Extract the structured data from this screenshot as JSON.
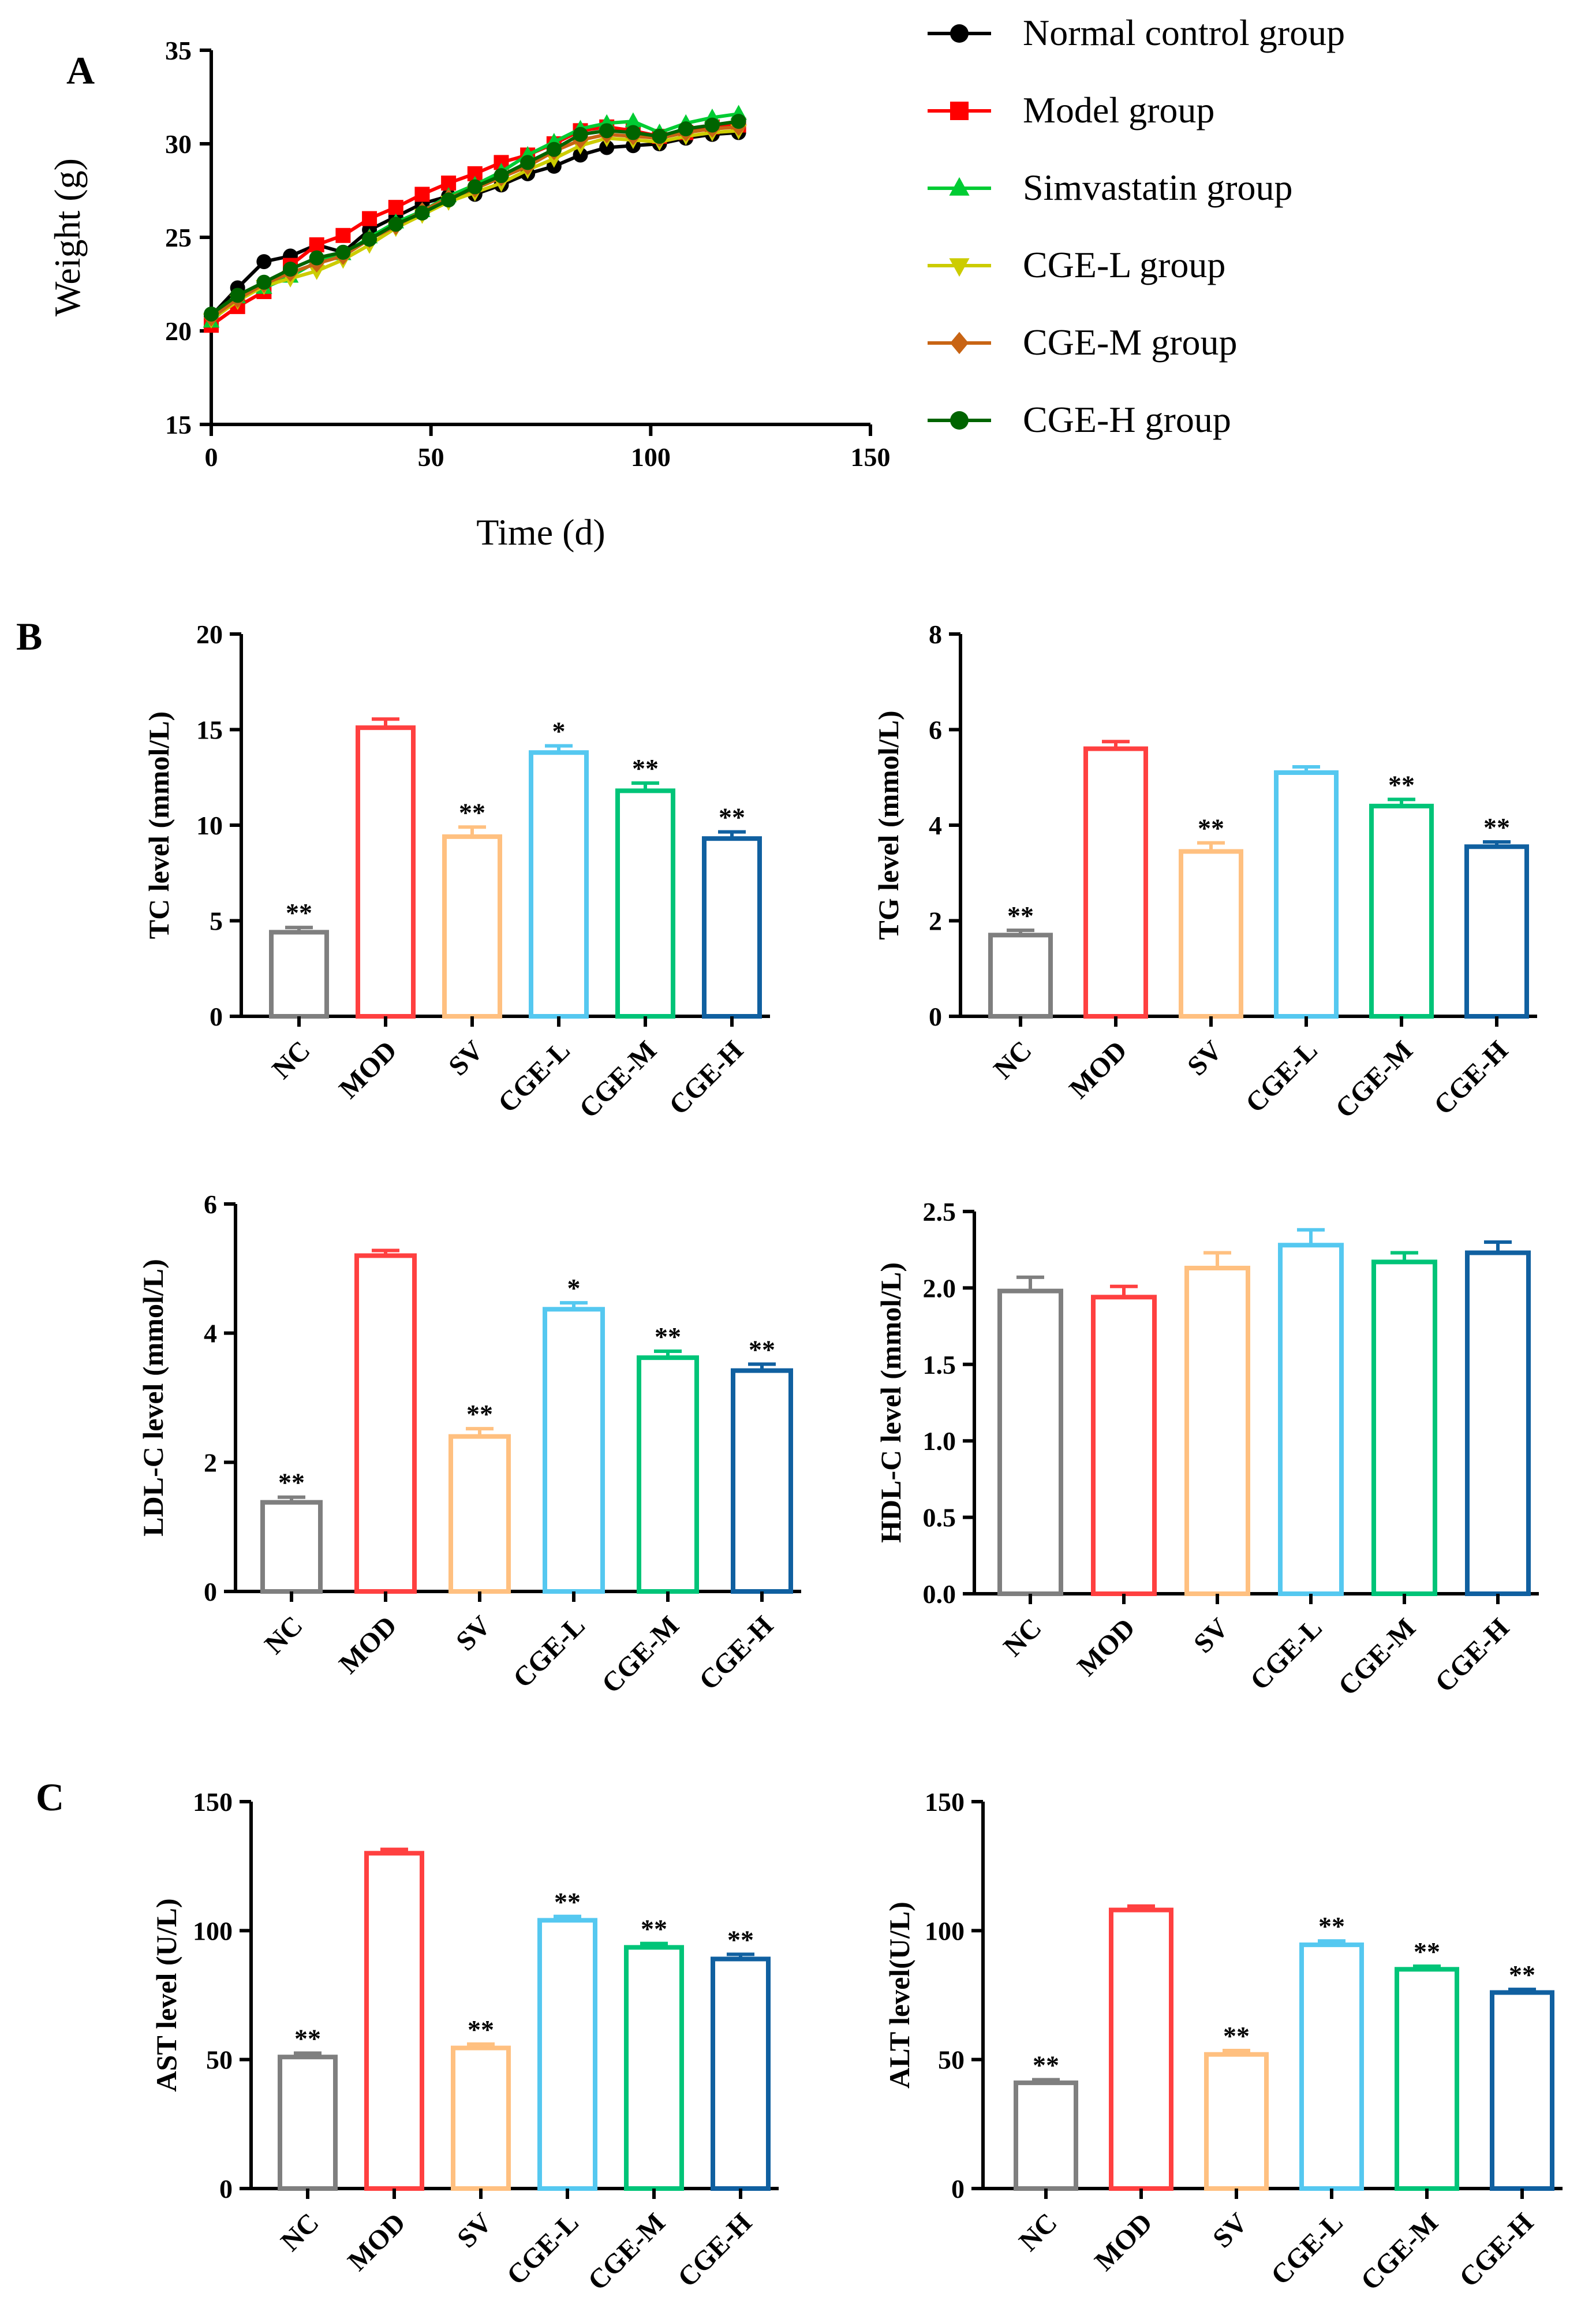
{
  "figure": {
    "panel_labels": [
      "A",
      "B",
      "C"
    ]
  },
  "chart_data": [
    {
      "id": "A",
      "type": "line",
      "panel": "A",
      "title": "",
      "xlabel": "Time (d)",
      "ylabel": "Weight (g)",
      "xlim": [
        0,
        150
      ],
      "ylim": [
        15,
        35
      ],
      "xticks": [
        0,
        50,
        100,
        150
      ],
      "yticks": [
        15,
        20,
        25,
        30,
        35
      ],
      "x": [
        0,
        6,
        12,
        18,
        24,
        30,
        36,
        42,
        48,
        54,
        60,
        66,
        72,
        78,
        84,
        90,
        96,
        102,
        108,
        114,
        120
      ],
      "series": [
        {
          "name": "Normal control group",
          "marker": "circle",
          "color": "#000000",
          "values": [
            20.8,
            22.3,
            23.7,
            24.0,
            24.6,
            24.2,
            25.4,
            26.1,
            26.8,
            27.2,
            27.3,
            27.8,
            28.4,
            28.8,
            29.4,
            29.8,
            29.9,
            30.0,
            30.3,
            30.5,
            30.6
          ]
        },
        {
          "name": "Model group",
          "marker": "square",
          "color": "#ff0000",
          "values": [
            20.3,
            21.3,
            22.1,
            23.5,
            24.6,
            25.1,
            26.0,
            26.6,
            27.3,
            27.9,
            28.4,
            29.0,
            29.4,
            30.0,
            30.7,
            30.9,
            30.7,
            30.4,
            30.6,
            30.9,
            31.0
          ]
        },
        {
          "name": "Simvastatin group",
          "marker": "triangle-up",
          "color": "#00cc33",
          "values": [
            20.5,
            21.8,
            22.3,
            22.9,
            23.7,
            24.1,
            25.0,
            25.8,
            26.4,
            27.2,
            27.8,
            28.5,
            29.4,
            30.1,
            30.8,
            31.1,
            31.2,
            30.6,
            31.1,
            31.4,
            31.6
          ]
        },
        {
          "name": "CGE-L group",
          "marker": "triangle-down",
          "color": "#cccc00",
          "values": [
            20.6,
            21.6,
            22.4,
            22.8,
            23.2,
            23.8,
            24.6,
            25.5,
            26.2,
            26.9,
            27.4,
            27.9,
            28.6,
            29.2,
            29.9,
            30.3,
            30.2,
            30.1,
            30.4,
            30.6,
            30.7
          ]
        },
        {
          "name": "CGE-M group",
          "marker": "diamond",
          "color": "#c86414",
          "values": [
            20.7,
            21.7,
            22.5,
            23.1,
            23.6,
            24.0,
            24.9,
            25.6,
            26.4,
            27.1,
            27.6,
            28.2,
            28.8,
            29.6,
            30.2,
            30.5,
            30.4,
            30.3,
            30.6,
            30.8,
            30.9
          ]
        },
        {
          "name": "CGE-H group",
          "marker": "circle",
          "color": "#006400",
          "values": [
            20.9,
            21.9,
            22.6,
            23.3,
            23.9,
            24.2,
            24.9,
            25.7,
            26.3,
            27.0,
            27.7,
            28.3,
            29.0,
            29.7,
            30.5,
            30.7,
            30.6,
            30.4,
            30.8,
            31.0,
            31.2
          ]
        }
      ]
    },
    {
      "id": "B1",
      "type": "bar",
      "panel": "B",
      "ylabel": "TC level (mmol/L)",
      "ylim": [
        0,
        20
      ],
      "yticks": [
        "0",
        "5",
        "10",
        "15",
        "20"
      ],
      "categories": [
        "NC",
        "MOD",
        "SV",
        "CGE-L",
        "CGE-M",
        "CGE-H"
      ],
      "values": [
        4.4,
        15.1,
        9.4,
        13.8,
        11.8,
        9.3
      ],
      "errors": [
        0.25,
        0.45,
        0.5,
        0.35,
        0.4,
        0.35
      ],
      "significance": [
        "**",
        "",
        "**",
        "*",
        "**",
        "**"
      ]
    },
    {
      "id": "B2",
      "type": "bar",
      "panel": "B",
      "ylabel": "TG level (mmol/L)",
      "ylim": [
        0,
        8
      ],
      "yticks": [
        "0",
        "2",
        "4",
        "6",
        "8"
      ],
      "categories": [
        "NC",
        "MOD",
        "SV",
        "CGE-L",
        "CGE-M",
        "CGE-H"
      ],
      "values": [
        1.7,
        5.6,
        3.45,
        5.1,
        4.4,
        3.55
      ],
      "errors": [
        0.1,
        0.15,
        0.18,
        0.12,
        0.14,
        0.1
      ],
      "significance": [
        "**",
        "",
        "**",
        "",
        "**",
        "**"
      ]
    },
    {
      "id": "B3",
      "type": "bar",
      "panel": "B",
      "ylabel": "LDL-C level (mmol/L)",
      "ylim": [
        0,
        6
      ],
      "yticks": [
        "0",
        "2",
        "4",
        "6"
      ],
      "categories": [
        "NC",
        "MOD",
        "SV",
        "CGE-L",
        "CGE-M",
        "CGE-H"
      ],
      "values": [
        1.38,
        5.2,
        2.4,
        4.37,
        3.62,
        3.42
      ],
      "errors": [
        0.08,
        0.08,
        0.12,
        0.1,
        0.1,
        0.1
      ],
      "significance": [
        "**",
        "",
        "**",
        "*",
        "**",
        "**"
      ]
    },
    {
      "id": "B4",
      "type": "bar",
      "panel": "B",
      "ylabel": "HDL-C level (mmol/L)",
      "ylim": [
        0,
        2.5
      ],
      "yticks": [
        "0.0",
        "0.5",
        "1.0",
        "1.5",
        "2.0",
        "2.5"
      ],
      "categories": [
        "NC",
        "MOD",
        "SV",
        "CGE-L",
        "CGE-M",
        "CGE-H"
      ],
      "values": [
        1.98,
        1.94,
        2.13,
        2.28,
        2.17,
        2.23
      ],
      "errors": [
        0.09,
        0.07,
        0.1,
        0.1,
        0.06,
        0.07
      ],
      "significance": [
        "",
        "",
        "",
        "",
        "",
        ""
      ]
    },
    {
      "id": "C1",
      "type": "bar",
      "panel": "C",
      "ylabel": "AST level (U/L)",
      "ylim": [
        0,
        150
      ],
      "yticks": [
        "0",
        "50",
        "100",
        "150"
      ],
      "categories": [
        "NC",
        "MOD",
        "SV",
        "CGE-L",
        "CGE-M",
        "CGE-H"
      ],
      "values": [
        51,
        130,
        54.5,
        104,
        93.5,
        89
      ],
      "errors": [
        1.5,
        1.5,
        1.5,
        1.5,
        1.5,
        1.8
      ],
      "significance": [
        "**",
        "",
        "**",
        "**",
        "**",
        "**"
      ]
    },
    {
      "id": "C2",
      "type": "bar",
      "panel": "C",
      "ylabel": "ALT level(U/L)",
      "ylim": [
        0,
        150
      ],
      "yticks": [
        "0",
        "50",
        "100",
        "150"
      ],
      "categories": [
        "NC",
        "MOD",
        "SV",
        "CGE-L",
        "CGE-M",
        "CGE-H"
      ],
      "values": [
        41,
        108,
        52,
        94.5,
        85,
        76
      ],
      "errors": [
        1.2,
        1.5,
        1.5,
        1.5,
        1.2,
        1.2
      ],
      "significance": [
        "**",
        "",
        "**",
        "**",
        "**",
        "**"
      ]
    }
  ],
  "bar_colors": [
    "#7f7f7f",
    "#ff4040",
    "#ffc080",
    "#55c8f0",
    "#00c478",
    "#1060a0"
  ]
}
